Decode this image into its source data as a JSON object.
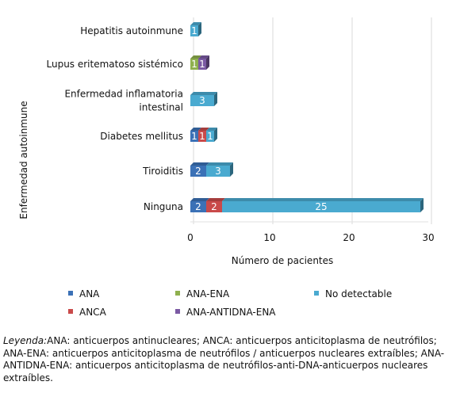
{
  "chart_data": {
    "type": "bar",
    "orientation": "horizontal",
    "stacked": true,
    "style_3d": true,
    "ylabel": "Enfermedad autoinmune",
    "xlabel": "Número de pacientes",
    "xlim": [
      0,
      30
    ],
    "xticks": [
      0,
      10,
      20,
      30
    ],
    "grid": true,
    "legend_position": "bottom",
    "categories": [
      "Hepatitis autoinmune",
      "Lupus eritematoso sistémico",
      "Enfermedad inflamatoria intestinal",
      "Diabetes mellitus",
      "Tiroiditis",
      "Ninguna"
    ],
    "category_lines": [
      [
        "Hepatitis autoinmune"
      ],
      [
        "Lupus eritematoso sistémico"
      ],
      [
        "Enfermedad inflamatoria",
        "intestinal"
      ],
      [
        "Diabetes mellitus"
      ],
      [
        "Tiroiditis"
      ],
      [
        "Ninguna"
      ]
    ],
    "series": [
      {
        "name": "ANA",
        "color": "#3b71b6",
        "values": [
          0,
          0,
          0,
          1,
          2,
          2
        ]
      },
      {
        "name": "ANCA",
        "color": "#c94a4a",
        "values": [
          0,
          0,
          0,
          1,
          0,
          2
        ]
      },
      {
        "name": "ANA-ENA",
        "color": "#8fb04e",
        "values": [
          0,
          1,
          0,
          0,
          0,
          0
        ]
      },
      {
        "name": "ANA-ANTIDNA-ENA",
        "color": "#7b5aa3",
        "values": [
          0,
          1,
          0,
          0,
          0,
          0
        ]
      },
      {
        "name": "No detectable",
        "color": "#4aaad0",
        "values": [
          1,
          0,
          3,
          1,
          3,
          25
        ]
      }
    ],
    "legend_order": [
      "ANA",
      "ANA-ENA",
      "No detectable",
      "ANCA",
      "ANA-ANTIDNA-ENA"
    ]
  },
  "note": {
    "label": "Leyenda:",
    "text": "ANA: anticuerpos antinucleares; ANCA: anticuerpos anticitoplasma de neutrófilos; ANA-ENA: anticuerpos anticitoplasma de neutrófilos / anticuerpos nucleares extraíbles; ANA-ANTIDNA-ENA: anticuerpos anticitoplasma de neutrófilos-anti-DNA-anticuerpos nucleares extraíbles."
  }
}
